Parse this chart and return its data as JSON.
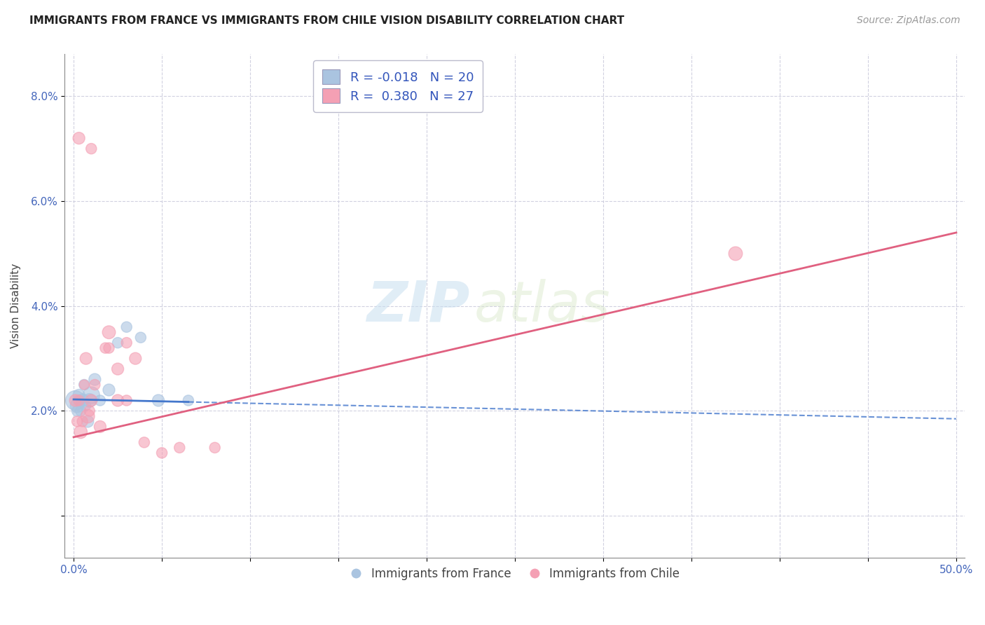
{
  "title": "IMMIGRANTS FROM FRANCE VS IMMIGRANTS FROM CHILE VISION DISABILITY CORRELATION CHART",
  "source": "Source: ZipAtlas.com",
  "ylabel": "Vision Disability",
  "y_ticks": [
    0.0,
    0.02,
    0.04,
    0.06,
    0.08
  ],
  "y_tick_labels": [
    "",
    "2.0%",
    "4.0%",
    "6.0%",
    "8.0%"
  ],
  "x_ticks": [
    0.0,
    0.05,
    0.1,
    0.15,
    0.2,
    0.25,
    0.3,
    0.35,
    0.4,
    0.45,
    0.5
  ],
  "x_tick_labels": [
    "0.0%",
    "",
    "",
    "",
    "",
    "",
    "",
    "",
    "",
    "",
    "50.0%"
  ],
  "xlim": [
    -0.005,
    0.505
  ],
  "ylim": [
    -0.008,
    0.088
  ],
  "france_color": "#aac4e0",
  "chile_color": "#f4a0b4",
  "france_line_color": "#4477cc",
  "chile_line_color": "#e06080",
  "france_R": -0.018,
  "france_N": 20,
  "chile_R": 0.38,
  "chile_N": 27,
  "legend_label_france": "Immigrants from France",
  "legend_label_chile": "Immigrants from Chile",
  "watermark_zip": "ZIP",
  "watermark_atlas": "atlas",
  "france_x": [
    0.001,
    0.002,
    0.003,
    0.004,
    0.005,
    0.006,
    0.007,
    0.008,
    0.009,
    0.01,
    0.012,
    0.015,
    0.02,
    0.025,
    0.03,
    0.038,
    0.048,
    0.065,
    0.002,
    0.003
  ],
  "france_y": [
    0.022,
    0.021,
    0.023,
    0.02,
    0.022,
    0.025,
    0.021,
    0.018,
    0.022,
    0.023,
    0.026,
    0.022,
    0.024,
    0.033,
    0.036,
    0.034,
    0.022,
    0.022,
    0.02,
    0.022
  ],
  "france_size": [
    400,
    200,
    150,
    120,
    180,
    120,
    100,
    150,
    200,
    300,
    150,
    120,
    150,
    120,
    120,
    120,
    150,
    120,
    120,
    120
  ],
  "chile_x": [
    0.001,
    0.002,
    0.003,
    0.004,
    0.005,
    0.006,
    0.007,
    0.008,
    0.009,
    0.01,
    0.012,
    0.015,
    0.018,
    0.02,
    0.025,
    0.03,
    0.035,
    0.04,
    0.05,
    0.06,
    0.08,
    0.02,
    0.025,
    0.03,
    0.375,
    0.01,
    0.003
  ],
  "chile_y": [
    0.022,
    0.018,
    0.022,
    0.016,
    0.018,
    0.025,
    0.03,
    0.019,
    0.02,
    0.022,
    0.025,
    0.017,
    0.032,
    0.035,
    0.028,
    0.033,
    0.03,
    0.014,
    0.012,
    0.013,
    0.013,
    0.032,
    0.022,
    0.022,
    0.05,
    0.07,
    0.072
  ],
  "chile_size": [
    150,
    120,
    120,
    180,
    120,
    100,
    150,
    200,
    120,
    150,
    120,
    150,
    120,
    180,
    150,
    120,
    150,
    120,
    120,
    120,
    120,
    120,
    150,
    120,
    200,
    120,
    150
  ],
  "france_line_x0": 0.0,
  "france_line_x1": 0.5,
  "france_line_y0": 0.0222,
  "france_line_y1": 0.0185,
  "chile_line_x0": 0.0,
  "chile_line_x1": 0.5,
  "chile_line_y0": 0.015,
  "chile_line_y1": 0.054
}
